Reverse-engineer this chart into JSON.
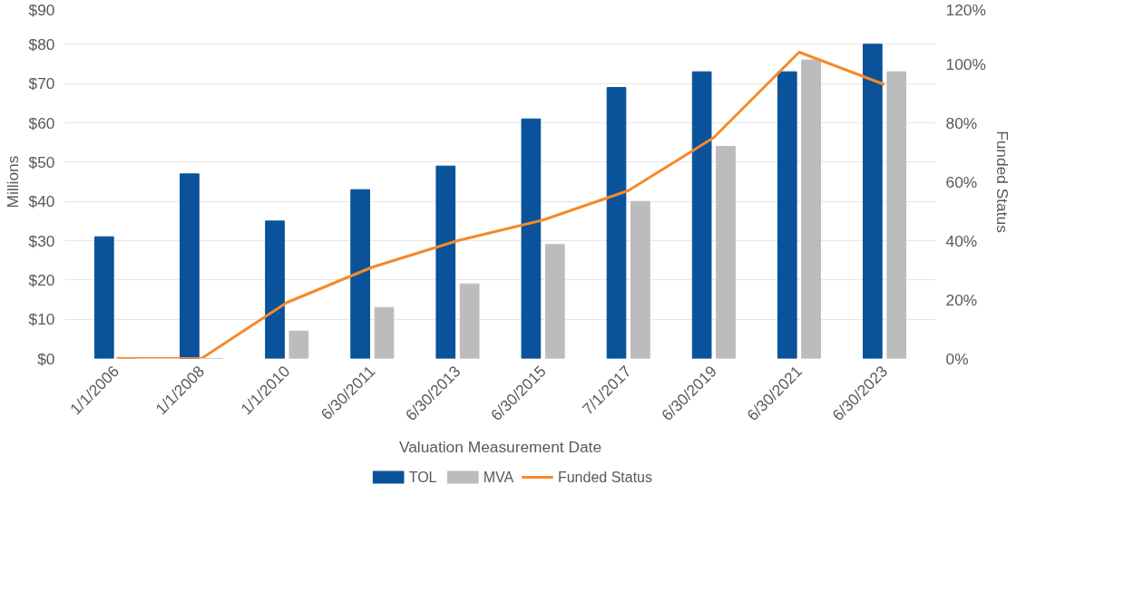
{
  "chart_data": {
    "type": "bar",
    "xlabel": "Valuation Measurement Date",
    "ylabel": "Millions",
    "y2label": "Funded Status",
    "categories": [
      "1/1/2006",
      "1/1/2008",
      "1/1/2010",
      "6/30/2011",
      "6/30/2013",
      "6/30/2015",
      "7/1/2017",
      "6/30/2019",
      "6/30/2021",
      "6/30/2023"
    ],
    "series": [
      {
        "name": "TOL",
        "color": "#0a5299",
        "values": [
          31,
          47,
          35,
          43,
          49,
          61,
          69,
          73,
          73,
          80
        ]
      },
      {
        "name": "MVA",
        "color": "#bcbcbc",
        "values": [
          0,
          0,
          7,
          13,
          19,
          29,
          40,
          54,
          76,
          73
        ]
      },
      {
        "name": "Funded Status",
        "type": "line",
        "axis": "y2",
        "color": "#f58a2a",
        "values": [
          0,
          0,
          19,
          31,
          40,
          47,
          57,
          75,
          104,
          93
        ]
      }
    ],
    "ylim": [
      0,
      90
    ],
    "yticks": [
      {
        "value": 0,
        "label": "$0"
      },
      {
        "value": 10,
        "label": "$10"
      },
      {
        "value": 20,
        "label": "$20"
      },
      {
        "value": 30,
        "label": "$30"
      },
      {
        "value": 40,
        "label": "$40"
      },
      {
        "value": 50,
        "label": "$50"
      },
      {
        "value": 60,
        "label": "$60"
      },
      {
        "value": 70,
        "label": "$70"
      },
      {
        "value": 80,
        "label": "$80"
      },
      {
        "value": 90,
        "label": "$90"
      }
    ],
    "y2lim": [
      0,
      120
    ],
    "y2ticks": [
      {
        "value": 0,
        "label": "0%"
      },
      {
        "value": 20,
        "label": "20%"
      },
      {
        "value": 40,
        "label": "40%"
      },
      {
        "value": 60,
        "label": "60%"
      },
      {
        "value": 80,
        "label": "80%"
      },
      {
        "value": 100,
        "label": "100%"
      },
      {
        "value": 120,
        "label": "120%"
      }
    ],
    "grid": "y",
    "legend": "bottom"
  }
}
